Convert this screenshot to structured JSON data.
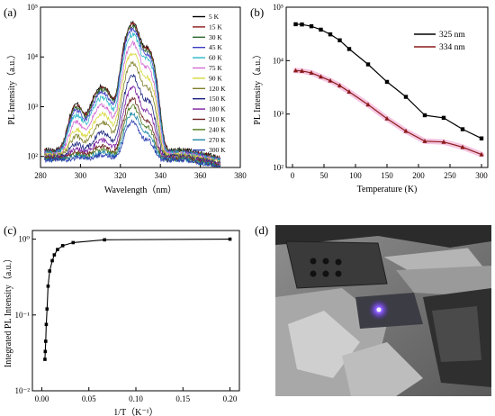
{
  "chart_data": [
    {
      "panel": "(a)",
      "type": "line",
      "xlabel": "Wavelength（nm）",
      "ylabel": "PL Intensity（a.u.）",
      "xlim": [
        280,
        380
      ],
      "ylim": [
        60,
        100000
      ],
      "yscale": "log",
      "xticks": [
        "280",
        "300",
        "320",
        "340",
        "360",
        "380"
      ],
      "yticks": [
        "10²",
        "10³",
        "10⁴",
        "10⁵"
      ],
      "legend_placement": "right",
      "peak_x": 326,
      "series": [
        {
          "name": "5 K",
          "color": "#000000",
          "peak": 48000,
          "base": 135
        },
        {
          "name": "15 K",
          "color": "#8b1a1a",
          "peak": 45000,
          "base": 130
        },
        {
          "name": "30 K",
          "color": "#2f6b2f",
          "peak": 42000,
          "base": 128
        },
        {
          "name": "45 K",
          "color": "#3b3bc4",
          "peak": 36000,
          "base": 122
        },
        {
          "name": "60 K",
          "color": "#2ab7c9",
          "peak": 28000,
          "base": 118
        },
        {
          "name": "75 K",
          "color": "#d26ad2",
          "peak": 19000,
          "base": 112
        },
        {
          "name": "90 K",
          "color": "#d8d83a",
          "peak": 12000,
          "base": 108
        },
        {
          "name": "120 K",
          "color": "#7f7f2a",
          "peak": 7500,
          "base": 104
        },
        {
          "name": "150 K",
          "color": "#1a237e",
          "peak": 4000,
          "base": 100
        },
        {
          "name": "180 K",
          "color": "#7b1fa2",
          "peak": 2300,
          "base": 96
        },
        {
          "name": "210 K",
          "color": "#6d1f1f",
          "peak": 1350,
          "base": 92
        },
        {
          "name": "240 K",
          "color": "#4d7a1a",
          "peak": 950,
          "base": 90
        },
        {
          "name": "270 K",
          "color": "#1e88a8",
          "peak": 650,
          "base": 88
        },
        {
          "name": "300 K",
          "color": "#2a3eb1",
          "peak": 420,
          "base": 85
        }
      ]
    },
    {
      "panel": "(b)",
      "type": "line",
      "xlabel": "Temperature (K)",
      "ylabel": "PL Intensity（a.u.）",
      "xlim": [
        -10,
        310
      ],
      "ylim": [
        100,
        100000
      ],
      "yscale": "log",
      "xticks": [
        0,
        50,
        100,
        150,
        200,
        250,
        300
      ],
      "yticks": [
        "10²",
        "10³",
        "10⁴",
        "10⁵"
      ],
      "legend_placement": "top-right",
      "x": [
        5,
        15,
        30,
        45,
        60,
        75,
        90,
        120,
        150,
        180,
        210,
        240,
        270,
        300
      ],
      "series": [
        {
          "name": "325 nm",
          "color": "#000000",
          "values": [
            48000,
            47500,
            44000,
            38000,
            31000,
            24000,
            16500,
            8500,
            4000,
            2100,
            950,
            850,
            520,
            350
          ]
        },
        {
          "name": "334 nm",
          "color": "#8b1a1a",
          "values": [
            6500,
            6400,
            5900,
            5000,
            4200,
            3400,
            2600,
            1500,
            820,
            480,
            310,
            300,
            240,
            175
          ]
        }
      ]
    },
    {
      "panel": "(c)",
      "type": "line",
      "xlabel": "1/T（K⁻¹）",
      "ylabel": "Integrated PL Intensity（a.u.）",
      "xlim": [
        -0.01,
        0.21
      ],
      "ylim": [
        0.01,
        1.3
      ],
      "yscale": "log",
      "xticks": [
        "0.00",
        "0.05",
        "0.10",
        "0.15",
        "0.20"
      ],
      "yticks": [
        "10⁻²",
        "10⁻¹",
        "10⁰"
      ],
      "x": [
        0.00333,
        0.0037,
        0.00417,
        0.00476,
        0.00556,
        0.00667,
        0.00833,
        0.0111,
        0.0133,
        0.0167,
        0.0222,
        0.0333,
        0.0667,
        0.2
      ],
      "series": [
        {
          "name": "",
          "color": "#000000",
          "values": [
            0.026,
            0.033,
            0.045,
            0.075,
            0.12,
            0.24,
            0.38,
            0.52,
            0.62,
            0.73,
            0.82,
            0.9,
            0.98,
            1.0
          ]
        }
      ]
    }
  ],
  "photo": {
    "panel": "(d)",
    "description_colors": {
      "background": "#6e6e6e",
      "glow": "#8a5cff"
    }
  }
}
